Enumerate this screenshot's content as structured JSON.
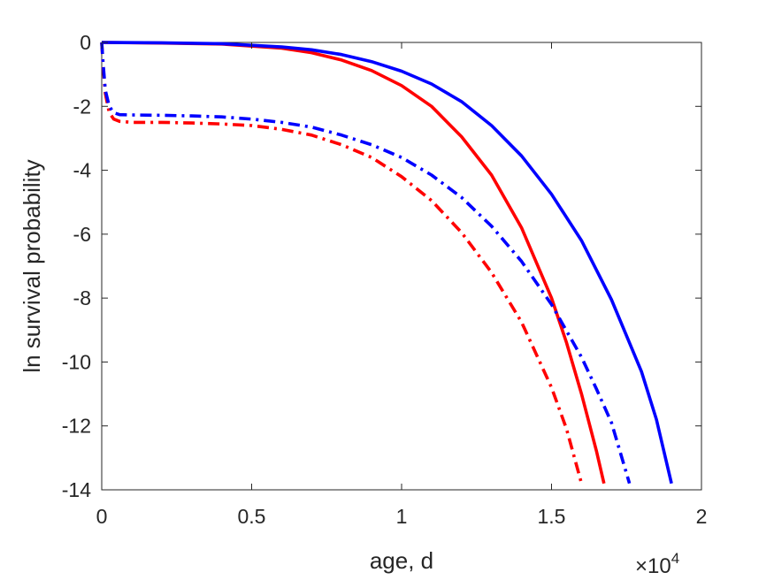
{
  "chart_data": {
    "type": "line",
    "xlabel": "age, d",
    "ylabel": "ln survival probability",
    "x_multiplier": {
      "base": "×10",
      "exponent": "4"
    },
    "xlim": [
      0,
      20000
    ],
    "ylim": [
      -14,
      0
    ],
    "xticks": [
      {
        "value": 0,
        "label": "0"
      },
      {
        "value": 5000,
        "label": "0.5"
      },
      {
        "value": 10000,
        "label": "1"
      },
      {
        "value": 15000,
        "label": "1.5"
      },
      {
        "value": 20000,
        "label": "2"
      }
    ],
    "yticks": [
      {
        "value": 0,
        "label": "0"
      },
      {
        "value": -2,
        "label": "-2"
      },
      {
        "value": -4,
        "label": "-4"
      },
      {
        "value": -6,
        "label": "-6"
      },
      {
        "value": -8,
        "label": "-8"
      },
      {
        "value": -10,
        "label": "-10"
      },
      {
        "value": -12,
        "label": "-12"
      },
      {
        "value": -14,
        "label": "-14"
      }
    ],
    "grid": false,
    "legend": "none",
    "series": [
      {
        "style": "solid",
        "color": "#ff0000",
        "x": [
          0,
          2000,
          4000,
          6000,
          7000,
          8000,
          9000,
          10000,
          11000,
          12000,
          13000,
          14000,
          15000,
          15500,
          16000,
          16500,
          16750
        ],
        "y": [
          0,
          -0.02,
          -0.05,
          -0.18,
          -0.32,
          -0.55,
          -0.88,
          -1.35,
          -2.0,
          -2.95,
          -4.15,
          -5.8,
          -8.0,
          -9.4,
          -11.0,
          -12.8,
          -13.8
        ]
      },
      {
        "style": "solid",
        "color": "#0000ff",
        "x": [
          0,
          2000,
          4000,
          6000,
          7000,
          8000,
          9000,
          10000,
          11000,
          12000,
          13000,
          14000,
          15000,
          16000,
          17000,
          18000,
          18500,
          19000
        ],
        "y": [
          0,
          -0.01,
          -0.04,
          -0.14,
          -0.23,
          -0.38,
          -0.6,
          -0.9,
          -1.3,
          -1.85,
          -2.6,
          -3.55,
          -4.75,
          -6.2,
          -8.05,
          -10.3,
          -11.8,
          -13.8
        ]
      },
      {
        "style": "dashdot",
        "color": "#ff0000",
        "x": [
          0,
          50,
          120,
          250,
          400,
          600,
          1000,
          2000,
          3000,
          4000,
          5000,
          6000,
          7000,
          8000,
          9000,
          10000,
          11000,
          12000,
          13000,
          14000,
          15000,
          15500,
          16000
        ],
        "y": [
          0,
          -0.8,
          -1.6,
          -2.2,
          -2.4,
          -2.47,
          -2.5,
          -2.5,
          -2.52,
          -2.55,
          -2.6,
          -2.72,
          -2.9,
          -3.2,
          -3.6,
          -4.2,
          -4.95,
          -5.95,
          -7.2,
          -8.75,
          -10.8,
          -12.1,
          -13.8
        ]
      },
      {
        "style": "dashdot",
        "color": "#0000ff",
        "x": [
          0,
          50,
          120,
          250,
          400,
          600,
          1000,
          2000,
          3000,
          4000,
          5000,
          6000,
          7000,
          8000,
          9000,
          10000,
          11000,
          12000,
          13000,
          14000,
          15000,
          16000,
          16500,
          17000,
          17600
        ],
        "y": [
          0,
          -0.7,
          -1.5,
          -2.0,
          -2.2,
          -2.26,
          -2.27,
          -2.28,
          -2.3,
          -2.33,
          -2.4,
          -2.5,
          -2.65,
          -2.9,
          -3.2,
          -3.6,
          -4.15,
          -4.85,
          -5.75,
          -6.85,
          -8.2,
          -9.85,
          -10.85,
          -11.9,
          -13.8
        ]
      }
    ]
  }
}
